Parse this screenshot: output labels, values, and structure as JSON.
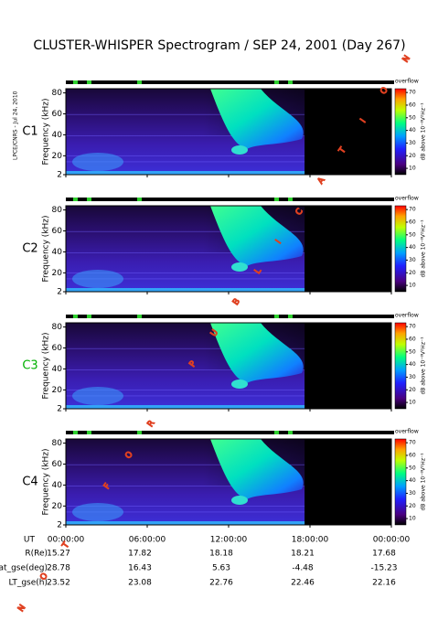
{
  "title": "CLUSTER-WHISPER Spectrogram / SEP 24, 2001 (Day 267)",
  "stamp": "LPCE/CNRS - Jul 24, 2010",
  "watermark": "NOT FOR PUBLICATION",
  "time_axis": {
    "xlim": [
      0,
      24
    ],
    "xticks": [
      {
        "value": 0,
        "label": "00:00:00"
      },
      {
        "value": 6,
        "label": "06:00:00"
      },
      {
        "value": 12,
        "label": "12:00:00"
      },
      {
        "value": 18,
        "label": "18:00:00"
      },
      {
        "value": 24,
        "label": "00:00:00"
      }
    ]
  },
  "chart_data": [
    {
      "type": "spectrogram",
      "label": "C1",
      "label_color": "#000000",
      "y_label": "Frequency (kHz)",
      "ylim": [
        2,
        84
      ],
      "yticks": [
        2,
        20,
        40,
        60,
        80
      ],
      "colorbar_label": "dB above 10⁻⁸V²Hz⁻¹",
      "colorbar_top": "overflow",
      "clim": [
        5,
        73
      ],
      "cticks": [
        10,
        20,
        30,
        40,
        50,
        60,
        70
      ]
    },
    {
      "type": "spectrogram",
      "label": "C2",
      "label_color": "#000000",
      "y_label": "Frequency (kHz)",
      "ylim": [
        2,
        84
      ],
      "yticks": [
        2,
        20,
        40,
        60,
        80
      ],
      "colorbar_label": "dB above 10⁻⁸V²Hz⁻¹",
      "colorbar_top": "overflow",
      "clim": [
        5,
        73
      ],
      "cticks": [
        10,
        20,
        30,
        40,
        50,
        60,
        70
      ]
    },
    {
      "type": "spectrogram",
      "label": "C3",
      "label_color": "#00b000",
      "y_label": "Frequency (kHz)",
      "ylim": [
        2,
        84
      ],
      "yticks": [
        2,
        20,
        40,
        60,
        80
      ],
      "colorbar_label": "dB above 10⁻⁸V²Hz⁻¹",
      "colorbar_top": "overflow",
      "clim": [
        5,
        73
      ],
      "cticks": [
        10,
        20,
        30,
        40,
        50,
        60,
        70
      ]
    },
    {
      "type": "spectrogram",
      "label": "C4",
      "label_color": "#000000",
      "y_label": "Frequency (kHz)",
      "ylim": [
        2,
        84
      ],
      "yticks": [
        2,
        20,
        40,
        60,
        80
      ],
      "colorbar_label": "dB above 10⁻⁸V²Hz⁻¹",
      "colorbar_top": "overflow",
      "clim": [
        5,
        73
      ],
      "cticks": [
        10,
        20,
        30,
        40,
        50,
        60,
        70
      ]
    }
  ],
  "ephemeris": {
    "ut_label": "UT",
    "rows": [
      {
        "label": "R(Re)",
        "values": [
          15.27,
          17.82,
          18.18,
          18.21,
          17.68
        ]
      },
      {
        "label": "Lat_gse(deg)",
        "values": [
          28.78,
          16.43,
          5.63,
          -4.48,
          -15.23
        ]
      },
      {
        "label": "LT_gse(h)",
        "values": [
          23.52,
          23.08,
          22.76,
          22.46,
          22.16
        ]
      }
    ]
  }
}
